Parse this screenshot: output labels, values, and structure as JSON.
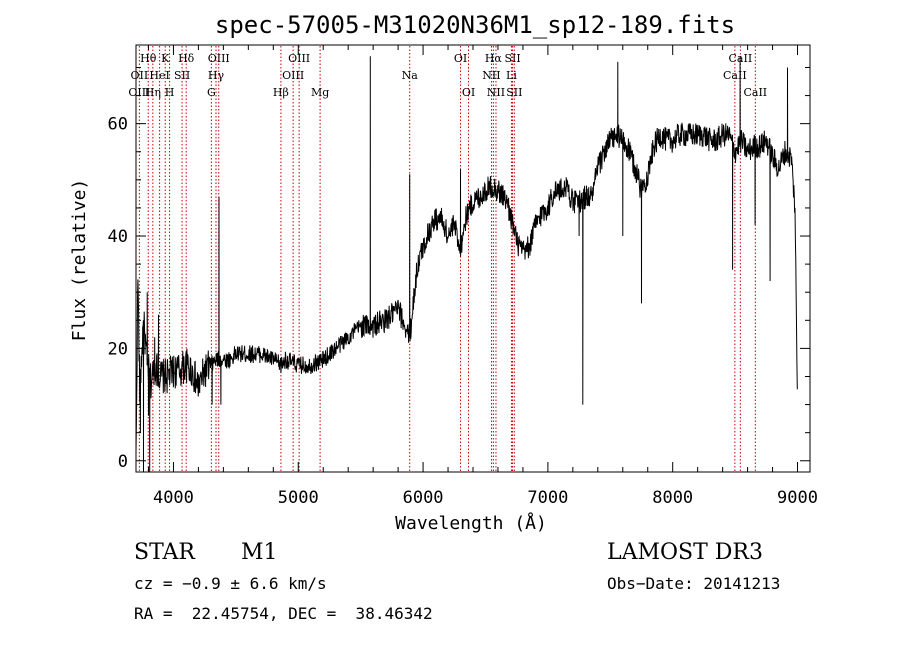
{
  "chart_data": {
    "type": "line",
    "title": "spec-57005-M31020N36M1_sp12-189.fits",
    "xlabel": "Wavelength (Å)",
    "ylabel": "Flux (relative)",
    "xlim": [
      3700,
      9100
    ],
    "ylim": [
      -2,
      74
    ],
    "xticks": [
      4000,
      5000,
      6000,
      7000,
      8000,
      9000
    ],
    "yticks": [
      0,
      20,
      40,
      60
    ],
    "grid": false,
    "line_color": "#000000",
    "marker_color": "#cc0000",
    "spectrum_anchors": [
      [
        3700,
        0
      ],
      [
        3715,
        33
      ],
      [
        3730,
        12
      ],
      [
        3760,
        25
      ],
      [
        3790,
        17
      ],
      [
        3820,
        14
      ],
      [
        3850,
        17
      ],
      [
        3900,
        15
      ],
      [
        3950,
        15
      ],
      [
        4000,
        16
      ],
      [
        4050,
        16
      ],
      [
        4100,
        17
      ],
      [
        4150,
        16
      ],
      [
        4200,
        13
      ],
      [
        4250,
        16
      ],
      [
        4300,
        17
      ],
      [
        4350,
        18
      ],
      [
        4400,
        18
      ],
      [
        4450,
        18
      ],
      [
        4500,
        19
      ],
      [
        4600,
        19
      ],
      [
        4700,
        19
      ],
      [
        4800,
        18
      ],
      [
        4861,
        17
      ],
      [
        4900,
        18
      ],
      [
        5000,
        17
      ],
      [
        5100,
        17
      ],
      [
        5200,
        18
      ],
      [
        5300,
        20
      ],
      [
        5400,
        22
      ],
      [
        5500,
        24
      ],
      [
        5600,
        24
      ],
      [
        5700,
        25
      ],
      [
        5800,
        27
      ],
      [
        5893,
        22
      ],
      [
        5950,
        34
      ],
      [
        6000,
        38
      ],
      [
        6050,
        41
      ],
      [
        6100,
        43
      ],
      [
        6150,
        43
      ],
      [
        6200,
        40
      ],
      [
        6250,
        42
      ],
      [
        6300,
        38
      ],
      [
        6350,
        44
      ],
      [
        6400,
        46
      ],
      [
        6450,
        47
      ],
      [
        6500,
        48
      ],
      [
        6550,
        49
      ],
      [
        6600,
        48
      ],
      [
        6650,
        47
      ],
      [
        6700,
        44
      ],
      [
        6750,
        39
      ],
      [
        6800,
        37
      ],
      [
        6850,
        38
      ],
      [
        6900,
        42
      ],
      [
        6950,
        44
      ],
      [
        7000,
        45
      ],
      [
        7050,
        48
      ],
      [
        7100,
        48
      ],
      [
        7150,
        49
      ],
      [
        7200,
        46
      ],
      [
        7250,
        46
      ],
      [
        7300,
        47
      ],
      [
        7350,
        47
      ],
      [
        7400,
        52
      ],
      [
        7450,
        55
      ],
      [
        7500,
        57
      ],
      [
        7550,
        58
      ],
      [
        7600,
        57
      ],
      [
        7650,
        55
      ],
      [
        7700,
        52
      ],
      [
        7750,
        48
      ],
      [
        7800,
        51
      ],
      [
        7850,
        56
      ],
      [
        7900,
        58
      ],
      [
        7950,
        57
      ],
      [
        8000,
        57
      ],
      [
        8050,
        58
      ],
      [
        8100,
        58
      ],
      [
        8150,
        58
      ],
      [
        8200,
        58
      ],
      [
        8250,
        58
      ],
      [
        8300,
        57
      ],
      [
        8350,
        57
      ],
      [
        8400,
        58
      ],
      [
        8450,
        58
      ],
      [
        8500,
        55
      ],
      [
        8550,
        57
      ],
      [
        8600,
        55
      ],
      [
        8650,
        56
      ],
      [
        8700,
        56
      ],
      [
        8750,
        57
      ],
      [
        8800,
        54
      ],
      [
        8850,
        52
      ],
      [
        8900,
        55
      ],
      [
        8950,
        54
      ],
      [
        8980,
        45
      ],
      [
        9000,
        9
      ]
    ],
    "spectrum_spikes": [
      [
        3735,
        5
      ],
      [
        3760,
        -2
      ],
      [
        3790,
        30
      ],
      [
        3800,
        8
      ],
      [
        3810,
        -2
      ],
      [
        3850,
        22
      ],
      [
        3880,
        26
      ],
      [
        4310,
        10
      ],
      [
        4365,
        47
      ],
      [
        4380,
        10
      ],
      [
        5577,
        72
      ],
      [
        5893,
        51
      ],
      [
        6300,
        52
      ],
      [
        7250,
        40
      ],
      [
        7280,
        10
      ],
      [
        7380,
        52
      ],
      [
        7560,
        71
      ],
      [
        7600,
        40
      ],
      [
        7750,
        28
      ],
      [
        8480,
        34
      ],
      [
        8540,
        72
      ],
      [
        8660,
        42
      ],
      [
        8780,
        32
      ],
      [
        8920,
        70
      ],
      [
        9000,
        4
      ]
    ],
    "lines": [
      {
        "label": "Hθ",
        "wavelength": 3798,
        "row": 0
      },
      {
        "label": "OII",
        "wavelength": 3727,
        "row": 1
      },
      {
        "label": "OIII",
        "wavelength": 3727,
        "row": 2
      },
      {
        "label": "K",
        "wavelength": 3934,
        "row": 0
      },
      {
        "label": "HeI",
        "wavelength": 3889,
        "row": 1
      },
      {
        "label": "Hη",
        "wavelength": 3835,
        "row": 2
      },
      {
        "label": "SII",
        "wavelength": 4069,
        "row": 1
      },
      {
        "label": "H",
        "wavelength": 3969,
        "row": 2
      },
      {
        "label": "Hδ",
        "wavelength": 4102,
        "row": 0
      },
      {
        "label": "OIII",
        "wavelength": 4363,
        "row": 0
      },
      {
        "label": "Hγ",
        "wavelength": 4341,
        "row": 1
      },
      {
        "label": "G",
        "wavelength": 4304,
        "row": 2
      },
      {
        "label": "OIII",
        "wavelength": 5007,
        "row": 0
      },
      {
        "label": "OIII",
        "wavelength": 4959,
        "row": 1
      },
      {
        "label": "Hβ",
        "wavelength": 4861,
        "row": 2
      },
      {
        "label": "Mg",
        "wavelength": 5175,
        "row": 2
      },
      {
        "label": "Na",
        "wavelength": 5893,
        "row": 1
      },
      {
        "label": "OI",
        "wavelength": 6300,
        "row": 0
      },
      {
        "label": "OI",
        "wavelength": 6364,
        "row": 2
      },
      {
        "label": "Hα",
        "wavelength": 6563,
        "row": 0
      },
      {
        "label": "NII",
        "wavelength": 6548,
        "row": 1
      },
      {
        "label": "NII",
        "wavelength": 6584,
        "row": 2
      },
      {
        "label": "SII",
        "wavelength": 6717,
        "row": 0
      },
      {
        "label": "Li",
        "wavelength": 6708,
        "row": 1
      },
      {
        "label": "SII",
        "wavelength": 6731,
        "row": 2
      },
      {
        "label": "CaII",
        "wavelength": 8542,
        "row": 0
      },
      {
        "label": "CaII",
        "wavelength": 8498,
        "row": 1
      },
      {
        "label": "CaII",
        "wavelength": 8662,
        "row": 2
      }
    ]
  },
  "info": {
    "object_class": "STAR",
    "subclass": "M1",
    "survey": "LAMOST DR3",
    "cz": "cz = −0.9 ± 6.6 km/s",
    "obs_date": "Obs−Date: 20141213",
    "coords": "RA =  22.45754, DEC =  38.46342"
  }
}
